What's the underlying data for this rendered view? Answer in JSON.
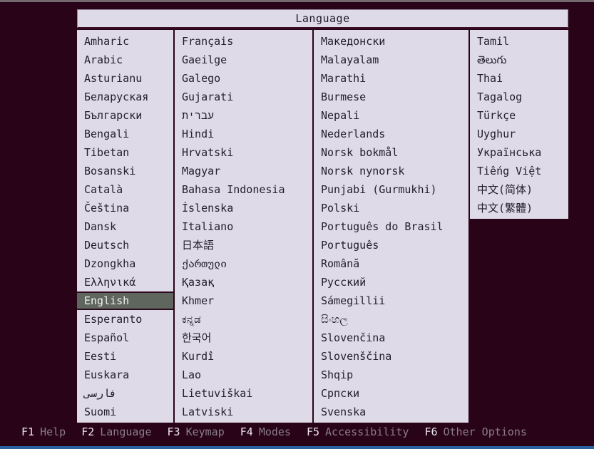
{
  "dialog": {
    "title": "Language"
  },
  "selected_language": "English",
  "columns": [
    {
      "items": [
        "Amharic",
        "Arabic",
        "Asturianu",
        "Беларуская",
        "Български",
        "Bengali",
        "Tibetan",
        "Bosanski",
        "Català",
        "Čeština",
        "Dansk",
        "Deutsch",
        "Dzongkha",
        "Ελληνικά",
        "English",
        "Esperanto",
        "Español",
        "Eesti",
        "Euskara",
        "فارسی",
        "Suomi"
      ]
    },
    {
      "items": [
        "Français",
        "Gaeilge",
        "Galego",
        "Gujarati",
        "עברית",
        "Hindi",
        "Hrvatski",
        "Magyar",
        "Bahasa Indonesia",
        "Íslenska",
        "Italiano",
        "日本語",
        "ქართული",
        "Қазақ",
        "Khmer",
        "ಕನ್ನಡ",
        "한국어",
        "Kurdî",
        "Lao",
        "Lietuviškai",
        "Latviski"
      ]
    },
    {
      "items": [
        "Македонски",
        "Malayalam",
        "Marathi",
        "Burmese",
        "Nepali",
        "Nederlands",
        "Norsk bokmål",
        "Norsk nynorsk",
        "Punjabi (Gurmukhi)",
        "Polski",
        "Português do Brasil",
        "Português",
        "Română",
        "Русский",
        "Sámegillii",
        "සිංහල",
        "Slovenčina",
        "Slovenščina",
        "Shqip",
        "Српски",
        "Svenska"
      ]
    },
    {
      "items": [
        "Tamil",
        "తెలుగు",
        "Thai",
        "Tagalog",
        "Türkçe",
        "Uyghur",
        "Українська",
        "Tiếng Việt",
        "中文(简体)",
        "中文(繁體)"
      ]
    }
  ],
  "function_keys": [
    {
      "key": "F1",
      "label": "Help"
    },
    {
      "key": "F2",
      "label": "Language"
    },
    {
      "key": "F3",
      "label": "Keymap"
    },
    {
      "key": "F4",
      "label": "Modes"
    },
    {
      "key": "F5",
      "label": "Accessibility"
    },
    {
      "key": "F6",
      "label": "Other Options"
    }
  ],
  "colors": {
    "background": "#290418",
    "panel": "#dedae8",
    "selected_bg": "#5f665e",
    "selected_text": "#f4f2f7",
    "item_text": "#23202e",
    "fn_key": "#ece8f0",
    "fn_label": "#8a7d8b",
    "bottom_bar": "#2a62a0",
    "top_edge": "#75686f"
  }
}
